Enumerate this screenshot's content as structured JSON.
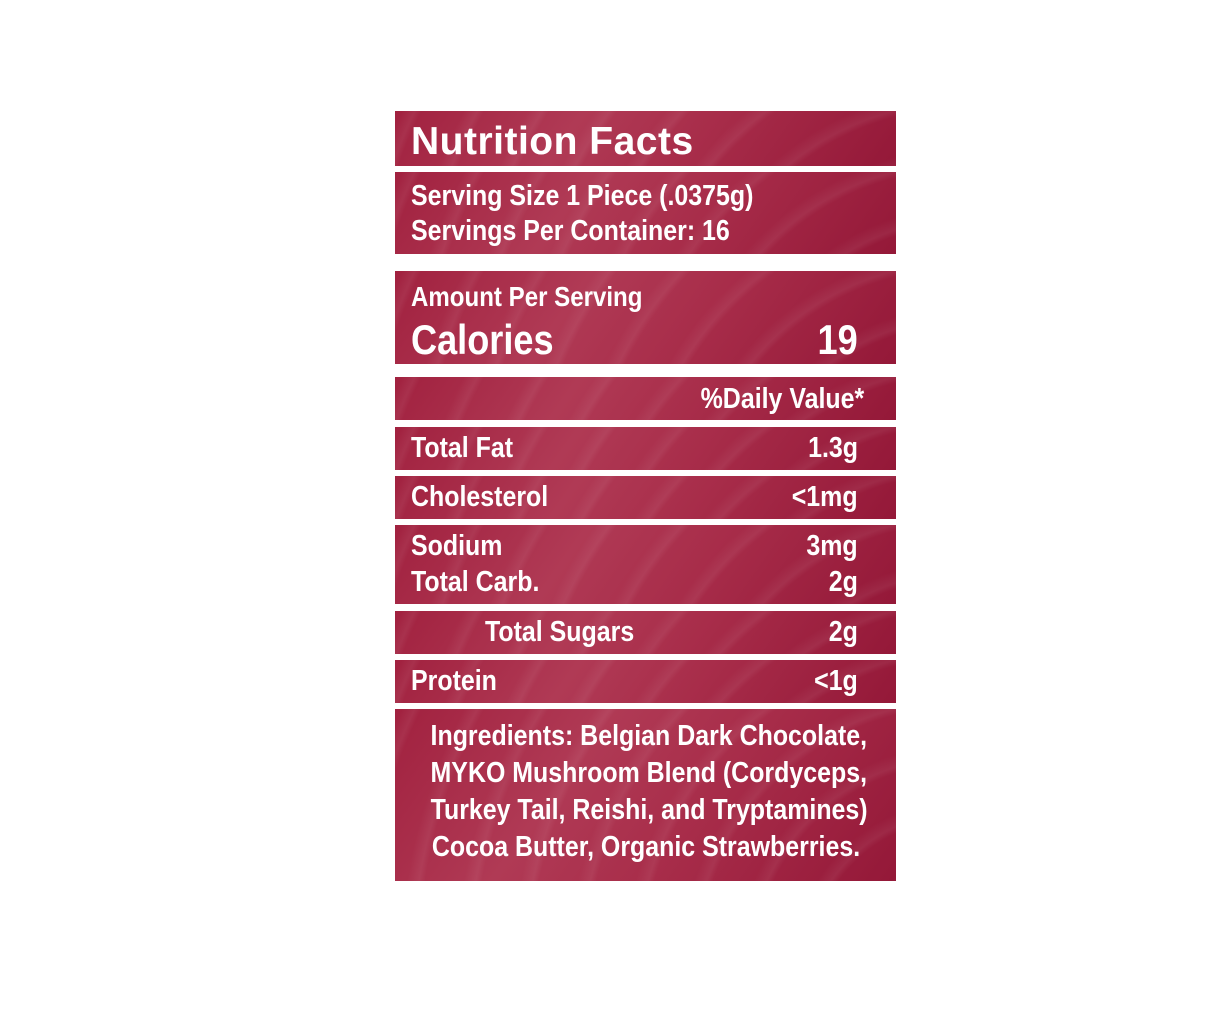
{
  "title": "Nutrition Facts",
  "serving": {
    "size": "Serving Size 1 Piece (.0375g)",
    "per_container": "Servings Per Container: 16"
  },
  "amount": {
    "label": "Amount Per Serving",
    "calories_label": "Calories",
    "calories_value": "19"
  },
  "daily_value_header": "%Daily Value*",
  "nutrients": [
    {
      "name": "Total Fat",
      "value": "1.3g"
    },
    {
      "name": "Cholesterol",
      "value": "<1mg"
    },
    {
      "name": "Sodium",
      "value": "3mg"
    },
    {
      "name": "Total Carb.",
      "value": "2g"
    },
    {
      "name": "Total Sugars",
      "value": "2g"
    },
    {
      "name": "Protein",
      "value": "<1g"
    }
  ],
  "ingredients": [
    "Ingredients: Belgian Dark Chocolate,",
    "MYKO Mushroom Blend (Cordyceps,",
    "Turkey Tail, Reishi, and Tryptamines)",
    "Cocoa Butter, Organic Strawberries."
  ],
  "colors": {
    "band": "#a1213f",
    "text": "#ffffff"
  }
}
